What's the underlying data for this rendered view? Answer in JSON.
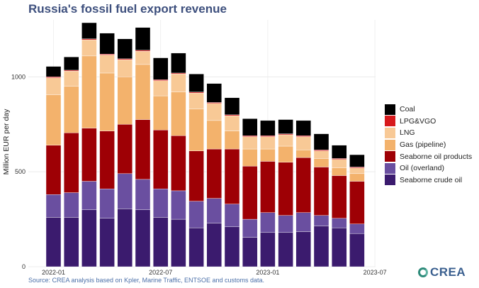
{
  "chart_data": {
    "type": "bar",
    "stacked": true,
    "title": "Russia's fossil fuel export revenue",
    "ylabel": "Million EUR per day",
    "xlabel": "",
    "ylim": [
      0,
      1300
    ],
    "yticks": [
      0,
      500,
      1000
    ],
    "xticks": [
      "2022-01",
      "2022-07",
      "2023-01",
      "2023-07"
    ],
    "categories": [
      "2022-01",
      "2022-02",
      "2022-03",
      "2022-04",
      "2022-05",
      "2022-06",
      "2022-07",
      "2022-08",
      "2022-09",
      "2022-10",
      "2022-11",
      "2022-12",
      "2023-01",
      "2023-02",
      "2023-03",
      "2023-04",
      "2023-05",
      "2023-06"
    ],
    "series": [
      {
        "name": "Seaborne crude oil",
        "color": "#3b1b6e",
        "values": [
          260,
          260,
          300,
          255,
          305,
          300,
          260,
          250,
          205,
          230,
          210,
          155,
          180,
          180,
          185,
          215,
          205,
          175
        ]
      },
      {
        "name": "Oil (overland)",
        "color": "#6a4fa0",
        "values": [
          120,
          130,
          150,
          155,
          185,
          160,
          150,
          150,
          140,
          130,
          120,
          95,
          105,
          90,
          100,
          55,
          50,
          50
        ]
      },
      {
        "name": "Seaborne oil products",
        "color": "#9e0005",
        "values": [
          260,
          315,
          280,
          305,
          260,
          315,
          310,
          290,
          265,
          260,
          290,
          280,
          270,
          280,
          290,
          255,
          225,
          225
        ]
      },
      {
        "name": "Gas (pipeline)",
        "color": "#f3b26c",
        "values": [
          265,
          245,
          380,
          305,
          250,
          290,
          180,
          230,
          220,
          150,
          95,
          90,
          65,
          85,
          40,
          45,
          40,
          40
        ]
      },
      {
        "name": "LNG",
        "color": "#f8c996",
        "values": [
          90,
          80,
          85,
          95,
          90,
          70,
          80,
          95,
          85,
          90,
          80,
          65,
          65,
          60,
          70,
          40,
          45,
          30
        ]
      },
      {
        "name": "LPG&VGO",
        "color": "#d7191c",
        "values": [
          5,
          5,
          5,
          5,
          5,
          5,
          5,
          5,
          5,
          5,
          5,
          5,
          5,
          5,
          5,
          5,
          5,
          5
        ]
      },
      {
        "name": "Coal",
        "color": "#000000",
        "values": [
          55,
          70,
          85,
          110,
          105,
          120,
          115,
          105,
          95,
          100,
          90,
          90,
          80,
          75,
          80,
          85,
          70,
          65
        ]
      }
    ],
    "legend_position": "right",
    "grid": true
  },
  "source": "Source: CREA analysis based on Kpler, Marine Traffic, ENTSOE and customs data.",
  "logo_text": "CREA"
}
